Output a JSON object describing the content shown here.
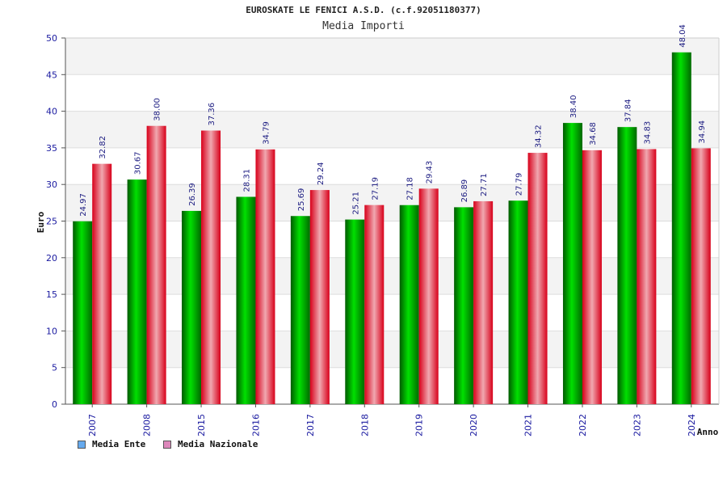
{
  "header": {
    "title": "EUROSKATE LE FENICI A.S.D. (c.f.92051180377)",
    "subtitle": "Media Importi"
  },
  "chart_data": {
    "type": "bar",
    "title": "EUROSKATE LE FENICI A.S.D. (c.f.92051180377)",
    "subtitle": "Media Importi",
    "xlabel": "Anno",
    "ylabel": "Euro",
    "ylim": [
      0,
      50
    ],
    "yticks": [
      0,
      5,
      10,
      15,
      20,
      25,
      30,
      35,
      40,
      45,
      50
    ],
    "categories": [
      "2007",
      "2008",
      "2015",
      "2016",
      "2017",
      "2018",
      "2019",
      "2020",
      "2021",
      "2022",
      "2023",
      "2024"
    ],
    "series": [
      {
        "name": "Media Ente",
        "color": "#00c000",
        "legend_color": "#66aaee",
        "values": [
          24.97,
          30.67,
          26.39,
          28.31,
          25.69,
          25.21,
          27.18,
          26.89,
          27.79,
          38.4,
          37.84,
          48.04
        ],
        "labels": [
          "24.97",
          "30.67",
          "26.39",
          "28.31",
          "25.69",
          "25.21",
          "27.18",
          "26.89",
          "27.79",
          "38.40",
          "37.84",
          "48.04"
        ]
      },
      {
        "name": "Media Nazionale",
        "color": "#ee1122",
        "legend_color": "#dd88bb",
        "values": [
          32.82,
          38.0,
          37.36,
          34.79,
          29.24,
          27.19,
          29.43,
          27.71,
          34.32,
          34.68,
          34.83,
          34.94
        ],
        "labels": [
          "32.82",
          "38.00",
          "37.36",
          "34.79",
          "29.24",
          "27.19",
          "29.43",
          "27.71",
          "34.32",
          "34.68",
          "34.83",
          "34.94"
        ]
      }
    ],
    "grid": true,
    "legend_position": "bottom-left"
  },
  "legend": {
    "items": [
      {
        "label": "Media Ente",
        "color": "#66aaee"
      },
      {
        "label": "Media Nazionale",
        "color": "#dd88bb"
      }
    ]
  }
}
